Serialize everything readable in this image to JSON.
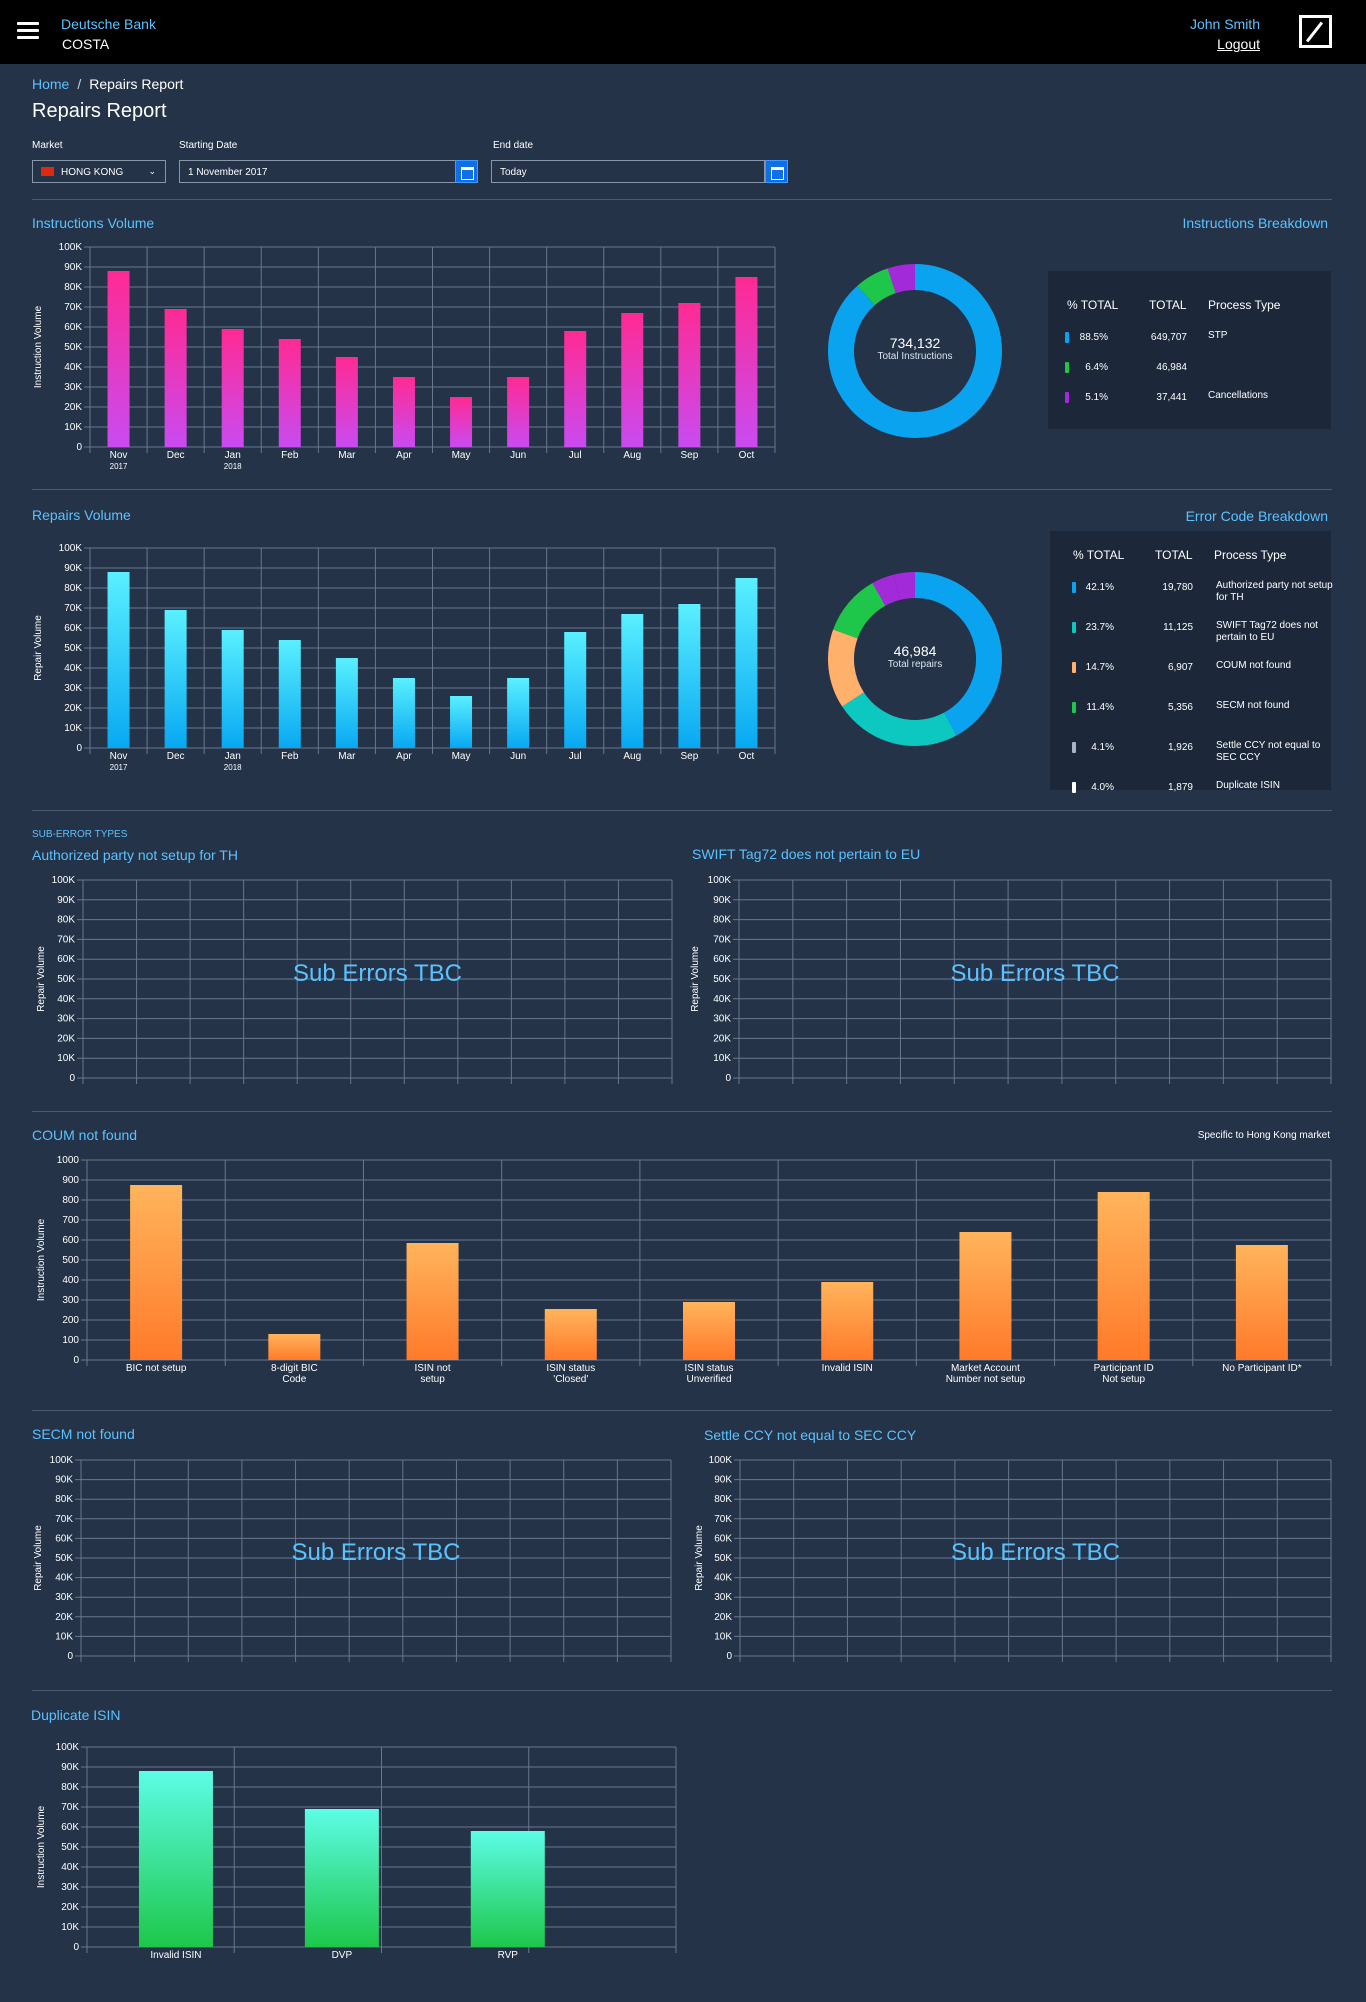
{
  "header": {
    "brand": "Deutsche Bank",
    "app": "COSTA",
    "user": "John Smith",
    "logout": "Logout"
  },
  "breadcrumb": {
    "home": "Home",
    "separator": "/",
    "current": "Repairs Report"
  },
  "page_title": "Repairs Report",
  "filters": {
    "market_label": "Market",
    "market_value": "HONG KONG",
    "start_label": "Starting Date",
    "start_value": "1 November 2017",
    "end_label": "End date",
    "end_value": "Today"
  },
  "sections": {
    "instructions_volume": "Instructions Volume",
    "instructions_breakdown": "Instructions Breakdown",
    "repairs_volume": "Repairs Volume",
    "error_code_breakdown": "Error Code Breakdown",
    "sub_error_types": "SUB-ERROR TYPES",
    "sub1": "Authorized party not setup for TH",
    "sub2": "SWIFT Tag72 does not pertain to EU",
    "coum": "COUM not found",
    "coum_note": "Specific to Hong Kong market",
    "secm": "SECM not found",
    "settle": "Settle CCY not equal to SEC CCY",
    "dup": "Duplicate ISIN",
    "tbc": "Sub Errors TBC"
  },
  "instructions_donut": {
    "value": "734,132",
    "label": "Total Instructions"
  },
  "repairs_donut": {
    "value": "46,984",
    "label": "Total repairs"
  },
  "instructions_breakdown": {
    "headers": [
      "% TOTAL",
      "TOTAL",
      "Process Type"
    ],
    "rows": [
      {
        "pct": "88.5%",
        "total": "649,707",
        "type": "STP",
        "color": "#0aa3f0"
      },
      {
        "pct": "6.4%",
        "total": "46,984",
        "type": "",
        "color": "#1ec74a"
      },
      {
        "pct": "5.1%",
        "total": "37,441",
        "type": "Cancellations",
        "color": "#a22ad8"
      }
    ]
  },
  "error_breakdown": {
    "headers": [
      "% TOTAL",
      "TOTAL",
      "Process Type"
    ],
    "rows": [
      {
        "pct": "42.1%",
        "total": "19,780",
        "type": "Authorized party not setup for TH",
        "color": "#0aa3f0"
      },
      {
        "pct": "23.7%",
        "total": "11,125",
        "type": "SWIFT Tag72 does not pertain to EU",
        "color": "#0cc8c0"
      },
      {
        "pct": "14.7%",
        "total": "6,907",
        "type": "COUM not found",
        "color": "#ffb06a"
      },
      {
        "pct": "11.4%",
        "total": "5,356",
        "type": "SECM not found",
        "color": "#1ec74a"
      },
      {
        "pct": "4.1%",
        "total": "1,926",
        "type": "Settle CCY not equal to SEC CCY",
        "color": "#a9b3c4"
      },
      {
        "pct": "4.0%",
        "total": "1,879",
        "type": "Duplicate ISIN",
        "color": "#ffffff"
      }
    ]
  },
  "chart_data": [
    {
      "id": "instructions_volume",
      "type": "bar",
      "categories": [
        "Nov",
        "Dec",
        "Jan",
        "Feb",
        "Mar",
        "Apr",
        "May",
        "Jun",
        "Jul",
        "Aug",
        "Sep",
        "Oct"
      ],
      "year_labels": [
        "2017",
        "",
        "2018",
        "",
        "",
        "",
        "",
        "",
        "",
        "",
        "",
        ""
      ],
      "values": [
        88000,
        69000,
        59000,
        54000,
        45000,
        35000,
        25000,
        35000,
        58000,
        67000,
        72000,
        85000
      ],
      "ylabel": "Instruction Volume",
      "yticks": [
        "0",
        "10K",
        "20K",
        "30K",
        "40K",
        "50K",
        "60K",
        "70K",
        "80K",
        "90K",
        "100K"
      ],
      "ylim": [
        0,
        100000
      ],
      "colors": [
        "#ff2a93",
        "#c94bf1"
      ]
    },
    {
      "id": "repairs_volume",
      "type": "bar",
      "categories": [
        "Nov",
        "Dec",
        "Jan",
        "Feb",
        "Mar",
        "Apr",
        "May",
        "Jun",
        "Jul",
        "Aug",
        "Sep",
        "Oct"
      ],
      "year_labels": [
        "2017",
        "",
        "2018",
        "",
        "",
        "",
        "",
        "",
        "",
        "",
        "",
        ""
      ],
      "values": [
        88000,
        69000,
        59000,
        54000,
        45000,
        35000,
        26000,
        35000,
        58000,
        67000,
        72000,
        85000
      ],
      "ylabel": "Repair Volume",
      "yticks": [
        "0",
        "10K",
        "20K",
        "30K",
        "40K",
        "50K",
        "60K",
        "70K",
        "80K",
        "90K",
        "100K"
      ],
      "ylim": [
        0,
        100000
      ],
      "colors": [
        "#5af0ff",
        "#08a8f2"
      ]
    },
    {
      "id": "instructions_donut",
      "type": "pie",
      "values": [
        88.5,
        6.4,
        5.1
      ],
      "colors": [
        "#0aa3f0",
        "#1ec74a",
        "#a22ad8"
      ]
    },
    {
      "id": "repairs_donut",
      "type": "pie",
      "values": [
        42.1,
        23.7,
        14.7,
        11.4,
        4.1,
        4.0
      ],
      "colors": [
        "#0aa3f0",
        "#0cc8c0",
        "#ffb06a",
        "#1ec74a",
        "#a22ad8",
        "#a22ad8"
      ]
    },
    {
      "id": "sub1",
      "type": "bar",
      "categories": [],
      "values": [],
      "ylabel": "Repair Volume",
      "yticks": [
        "0",
        "10K",
        "20K",
        "30K",
        "40K",
        "50K",
        "60K",
        "70K",
        "80K",
        "90K",
        "100K"
      ],
      "ylim": [
        0,
        100000
      ]
    },
    {
      "id": "sub2",
      "type": "bar",
      "categories": [],
      "values": [],
      "ylabel": "Repair Volume",
      "yticks": [
        "0",
        "10K",
        "20K",
        "30K",
        "40K",
        "50K",
        "60K",
        "70K",
        "80K",
        "90K",
        "100K"
      ],
      "ylim": [
        0,
        100000
      ]
    },
    {
      "id": "coum",
      "type": "bar",
      "categories": [
        "BIC not setup",
        "8-digit BIC|Code",
        "ISIN not|setup",
        "ISIN status|'Closed'",
        "ISIN status|Unverified",
        "Invalid ISIN",
        "Market Account|Number not setup",
        "Participant ID|Not setup",
        "No Participant ID*"
      ],
      "values": [
        875,
        130,
        585,
        255,
        290,
        390,
        640,
        840,
        575
      ],
      "ylabel": "Instruction Volume",
      "yticks": [
        "0",
        "100",
        "200",
        "300",
        "400",
        "500",
        "600",
        "700",
        "800",
        "900",
        "1000"
      ],
      "ylim": [
        0,
        1000
      ],
      "colors": [
        "#ffb45c",
        "#ff7a2a"
      ]
    },
    {
      "id": "secm",
      "type": "bar",
      "categories": [],
      "values": [],
      "ylabel": "Repair Volume",
      "yticks": [
        "0",
        "10K",
        "20K",
        "30K",
        "40K",
        "50K",
        "60K",
        "70K",
        "80K",
        "90K",
        "100K"
      ],
      "ylim": [
        0,
        100000
      ]
    },
    {
      "id": "settle",
      "type": "bar",
      "categories": [],
      "values": [],
      "ylabel": "Repair Volume",
      "yticks": [
        "0",
        "10K",
        "20K",
        "30K",
        "40K",
        "50K",
        "60K",
        "70K",
        "80K",
        "90K",
        "100K"
      ],
      "ylim": [
        0,
        100000
      ]
    },
    {
      "id": "dup",
      "type": "bar",
      "categories": [
        "Invalid ISIN",
        "DVP",
        "RVP"
      ],
      "values": [
        88000,
        69000,
        58000
      ],
      "ylabel": "Instruction Volume",
      "yticks": [
        "0",
        "10K",
        "20K",
        "30K",
        "40K",
        "50K",
        "60K",
        "70K",
        "80K",
        "90K",
        "100K"
      ],
      "ylim": [
        0,
        100000
      ],
      "colors": [
        "#5cfde6",
        "#1ec74a"
      ]
    }
  ]
}
